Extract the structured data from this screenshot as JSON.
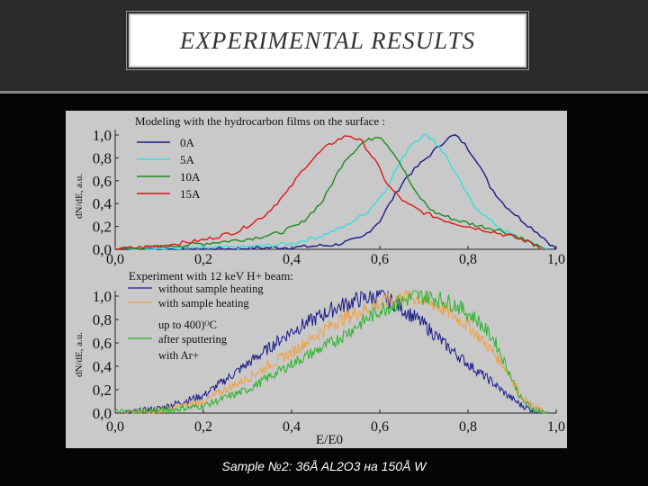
{
  "slide": {
    "title": "EXPERIMENTAL RESULTS",
    "caption": "Sample №2: 36Å AL2O3 на 150Å W"
  },
  "colors": {
    "navy": "#1a1a8a",
    "cyan": "#35dede",
    "green": "#1f8a1f",
    "red": "#e01818",
    "orange": "#f0a040",
    "lime": "#28b428"
  },
  "chart_data": [
    {
      "type": "line",
      "title": "Modeling with the hydrocarbon films on the surface :",
      "ylabel": "dN/dE, a.u.",
      "xlabel": "",
      "xlim": [
        0.0,
        1.0
      ],
      "ylim": [
        0.0,
        1.0
      ],
      "xticks": [
        "0,0",
        "0,2",
        "0,4",
        "0,6",
        "0,8",
        "1,0"
      ],
      "yticks": [
        "0,0",
        "0,2",
        "0,4",
        "0,6",
        "0,8",
        "1,0"
      ],
      "legend_position": "top-left",
      "series": [
        {
          "name": "0A",
          "color": "#1a1a8a",
          "x": [
            0.0,
            0.2,
            0.3,
            0.42,
            0.5,
            0.56,
            0.6,
            0.63,
            0.66,
            0.69,
            0.72,
            0.75,
            0.77,
            0.79,
            0.82,
            0.85,
            0.88,
            0.92,
            0.96,
            1.0
          ],
          "y": [
            0.0,
            0.0,
            0.01,
            0.02,
            0.04,
            0.1,
            0.25,
            0.45,
            0.63,
            0.74,
            0.85,
            0.96,
            1.0,
            0.93,
            0.78,
            0.55,
            0.4,
            0.26,
            0.14,
            0.0
          ]
        },
        {
          "name": "5A",
          "color": "#35dede",
          "x": [
            0.0,
            0.2,
            0.3,
            0.4,
            0.47,
            0.52,
            0.57,
            0.61,
            0.64,
            0.67,
            0.7,
            0.72,
            0.75,
            0.78,
            0.81,
            0.85,
            0.88,
            0.92,
            0.96,
            0.98
          ],
          "y": [
            0.0,
            0.01,
            0.02,
            0.05,
            0.12,
            0.2,
            0.32,
            0.5,
            0.72,
            0.92,
            1.0,
            0.97,
            0.82,
            0.6,
            0.4,
            0.25,
            0.17,
            0.09,
            0.03,
            0.0
          ]
        },
        {
          "name": "10A",
          "color": "#1f8a1f",
          "x": [
            0.0,
            0.1,
            0.2,
            0.3,
            0.37,
            0.42,
            0.47,
            0.52,
            0.56,
            0.6,
            0.64,
            0.68,
            0.72,
            0.77,
            0.82,
            0.87,
            0.92,
            0.95,
            0.97
          ],
          "y": [
            0.0,
            0.02,
            0.05,
            0.09,
            0.14,
            0.22,
            0.42,
            0.78,
            0.93,
            1.0,
            0.8,
            0.5,
            0.33,
            0.26,
            0.21,
            0.17,
            0.1,
            0.04,
            0.0
          ]
        },
        {
          "name": "15A",
          "color": "#e01818",
          "x": [
            0.0,
            0.1,
            0.2,
            0.28,
            0.34,
            0.39,
            0.43,
            0.47,
            0.5,
            0.53,
            0.56,
            0.59,
            0.62,
            0.66,
            0.7,
            0.75,
            0.8,
            0.85,
            0.9,
            0.95,
            0.97
          ],
          "y": [
            0.0,
            0.03,
            0.08,
            0.16,
            0.3,
            0.5,
            0.72,
            0.87,
            0.95,
            1.0,
            0.94,
            0.77,
            0.55,
            0.4,
            0.32,
            0.25,
            0.2,
            0.16,
            0.11,
            0.05,
            0.0
          ]
        }
      ]
    },
    {
      "type": "line",
      "title": "Experiment with 12 keV H+ beam:",
      "ylabel": "dN/dE, a.u.",
      "xlabel": "E/E0",
      "xlim": [
        0.0,
        1.0
      ],
      "ylim": [
        0.0,
        1.0
      ],
      "xticks": [
        "0,0",
        "0,2",
        "0,4",
        "0,6",
        "0,8",
        "1,0"
      ],
      "yticks": [
        "0,0",
        "0,2",
        "0,4",
        "0,6",
        "0,8",
        "1,0"
      ],
      "legend_position": "top-left",
      "legend_lines": [
        "without sample heating",
        "with sample heating",
        "up to 400)ᴼC",
        "after sputtering",
        "with Ar+"
      ],
      "series": [
        {
          "name": "without sample heating",
          "color": "#1a1a8a",
          "x": [
            0.02,
            0.1,
            0.2,
            0.3,
            0.4,
            0.5,
            0.55,
            0.6,
            0.63,
            0.7,
            0.75,
            0.8,
            0.85,
            0.89,
            0.92,
            0.95,
            0.98
          ],
          "y": [
            0.0,
            0.04,
            0.15,
            0.42,
            0.7,
            0.9,
            0.97,
            1.0,
            0.95,
            0.76,
            0.58,
            0.42,
            0.28,
            0.15,
            0.07,
            0.02,
            0.0
          ]
        },
        {
          "name": "with sample heating up to 400)ᴼC",
          "color": "#f0a040",
          "x": [
            0.02,
            0.1,
            0.2,
            0.3,
            0.4,
            0.5,
            0.6,
            0.66,
            0.7,
            0.75,
            0.8,
            0.85,
            0.89,
            0.92,
            0.95,
            0.98
          ],
          "y": [
            0.0,
            0.02,
            0.1,
            0.3,
            0.52,
            0.78,
            0.94,
            1.0,
            0.97,
            0.88,
            0.75,
            0.55,
            0.36,
            0.15,
            0.05,
            0.0
          ]
        },
        {
          "name": "after sputtering with Ar+",
          "color": "#28b428",
          "x": [
            0.0,
            0.1,
            0.2,
            0.3,
            0.4,
            0.5,
            0.6,
            0.68,
            0.72,
            0.77,
            0.82,
            0.86,
            0.89,
            0.92,
            0.95,
            0.98
          ],
          "y": [
            0.01,
            0.02,
            0.06,
            0.2,
            0.42,
            0.62,
            0.88,
            1.0,
            0.99,
            0.93,
            0.8,
            0.62,
            0.38,
            0.12,
            0.03,
            0.0
          ]
        }
      ]
    }
  ]
}
